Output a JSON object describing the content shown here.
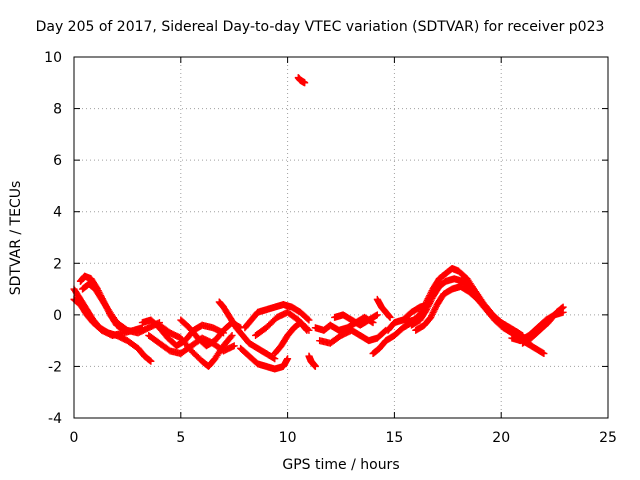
{
  "chart_data": {
    "type": "scatter",
    "title": "Day 205 of 2017, Sidereal Day-to-day VTEC variation (SDTVAR) for receiver p023",
    "xlabel": "GPS time / hours",
    "ylabel": "SDTVAR / TECUs",
    "xlim": [
      0,
      25
    ],
    "ylim": [
      -4,
      10
    ],
    "xticks": [
      0,
      5,
      10,
      15,
      20,
      25
    ],
    "yticks": [
      -4,
      -2,
      0,
      2,
      4,
      6,
      8,
      10
    ],
    "grid": true,
    "marker": "+",
    "series_color": "#ff0000",
    "traces": [
      {
        "name": "trace-1",
        "x": [
          0.0,
          0.3,
          0.6,
          0.9,
          1.2,
          1.6,
          2.0,
          2.5,
          3.0,
          3.3,
          3.6
        ],
        "y": [
          1.0,
          0.6,
          0.2,
          -0.2,
          -0.5,
          -0.7,
          -0.8,
          -1.0,
          -1.3,
          -1.6,
          -1.8
        ]
      },
      {
        "name": "trace-2",
        "x": [
          0.0,
          0.3,
          0.6,
          0.9,
          1.3,
          1.8,
          2.3,
          2.8,
          3.2
        ],
        "y": [
          0.6,
          0.4,
          0.0,
          -0.3,
          -0.6,
          -0.8,
          -0.7,
          -0.6,
          -0.5
        ]
      },
      {
        "name": "trace-3",
        "x": [
          0.3,
          0.5,
          0.8,
          1.1,
          1.4,
          1.7,
          2.0,
          2.4
        ],
        "y": [
          1.3,
          1.5,
          1.4,
          1.0,
          0.5,
          0.0,
          -0.4,
          -0.6
        ]
      },
      {
        "name": "trace-4",
        "x": [
          0.4,
          0.7,
          1.0,
          1.3,
          1.6,
          2.0,
          2.5,
          3.0,
          3.5,
          4.0
        ],
        "y": [
          1.0,
          1.2,
          1.0,
          0.6,
          0.2,
          -0.3,
          -0.6,
          -0.7,
          -0.5,
          -0.3
        ]
      },
      {
        "name": "trace-5",
        "x": [
          3.2,
          3.6,
          4.0,
          4.4,
          4.8,
          5.2,
          5.6,
          6.0,
          6.5,
          7.0
        ],
        "y": [
          -0.3,
          -0.2,
          -0.5,
          -0.9,
          -1.2,
          -1.0,
          -0.6,
          -0.4,
          -0.5,
          -0.7
        ]
      },
      {
        "name": "trace-6",
        "x": [
          3.5,
          4.0,
          4.5,
          5.0,
          5.5,
          6.0,
          6.5,
          7.0,
          7.5
        ],
        "y": [
          -0.8,
          -1.1,
          -1.4,
          -1.5,
          -1.2,
          -0.9,
          -1.1,
          -1.4,
          -1.2
        ]
      },
      {
        "name": "trace-7",
        "x": [
          4.0,
          4.5,
          5.0,
          5.5,
          6.0,
          6.3,
          6.6,
          7.0,
          7.4
        ],
        "y": [
          -0.4,
          -0.7,
          -0.9,
          -1.4,
          -1.8,
          -2.0,
          -1.7,
          -1.2,
          -0.8
        ]
      },
      {
        "name": "trace-8",
        "x": [
          5.0,
          5.4,
          5.8,
          6.2,
          6.6,
          7.0,
          7.4,
          7.8
        ],
        "y": [
          -0.2,
          -0.5,
          -0.9,
          -1.2,
          -1.0,
          -0.6,
          -0.3,
          -0.5
        ]
      },
      {
        "name": "trace-9",
        "x": [
          6.8,
          7.0,
          7.3,
          7.6,
          7.9,
          8.2,
          8.6,
          9.0,
          9.4
        ],
        "y": [
          0.5,
          0.3,
          -0.1,
          -0.5,
          -0.8,
          -1.1,
          -1.3,
          -1.5,
          -1.7
        ]
      },
      {
        "name": "trace-10",
        "x": [
          7.8,
          8.2,
          8.6,
          9.0,
          9.4,
          9.8,
          10.0
        ],
        "y": [
          -1.3,
          -1.6,
          -1.9,
          -2.0,
          -2.1,
          -2.0,
          -1.7
        ]
      },
      {
        "name": "trace-11",
        "x": [
          8.0,
          8.3,
          8.6,
          9.0,
          9.4,
          9.8,
          10.2,
          10.6,
          11.0
        ],
        "y": [
          -0.5,
          -0.2,
          0.1,
          0.2,
          0.3,
          0.4,
          0.3,
          0.1,
          -0.2
        ]
      },
      {
        "name": "trace-12",
        "x": [
          8.5,
          9.0,
          9.5,
          10.0,
          10.5,
          11.0
        ],
        "y": [
          -0.8,
          -0.5,
          -0.1,
          0.1,
          -0.2,
          -0.6
        ]
      },
      {
        "name": "trace-13",
        "x": [
          9.4,
          9.7,
          10.0,
          10.3,
          10.6,
          10.9
        ],
        "y": [
          -1.5,
          -1.2,
          -0.8,
          -0.5,
          -0.3,
          -0.6
        ]
      },
      {
        "name": "trace-14",
        "x": [
          10.5,
          10.6,
          10.7,
          10.8
        ],
        "y": [
          9.2,
          9.1,
          9.05,
          9.0
        ]
      },
      {
        "name": "trace-15",
        "x": [
          11.0,
          11.1,
          11.2,
          11.3
        ],
        "y": [
          -1.6,
          -1.8,
          -1.9,
          -2.0
        ]
      },
      {
        "name": "trace-16",
        "x": [
          11.3,
          11.7,
          12.0,
          12.4,
          12.8,
          13.2,
          13.6,
          14.0
        ],
        "y": [
          -0.5,
          -0.6,
          -0.4,
          -0.6,
          -0.5,
          -0.3,
          -0.1,
          -0.3
        ]
      },
      {
        "name": "trace-17",
        "x": [
          11.5,
          12.0,
          12.5,
          13.0,
          13.4,
          13.8,
          14.2,
          14.6
        ],
        "y": [
          -1.0,
          -1.1,
          -0.8,
          -0.6,
          -0.8,
          -1.0,
          -0.9,
          -0.6
        ]
      },
      {
        "name": "trace-18",
        "x": [
          12.2,
          12.6,
          13.0,
          13.4,
          13.8,
          14.2
        ],
        "y": [
          -0.1,
          0.0,
          -0.2,
          -0.4,
          -0.2,
          0.0
        ]
      },
      {
        "name": "trace-19",
        "x": [
          14.0,
          14.3,
          14.6,
          15.0,
          15.4,
          15.8,
          16.2
        ],
        "y": [
          -1.5,
          -1.3,
          -1.0,
          -0.8,
          -0.5,
          -0.3,
          -0.1
        ]
      },
      {
        "name": "trace-20",
        "x": [
          14.2,
          14.4,
          14.6,
          14.8
        ],
        "y": [
          0.6,
          0.3,
          0.1,
          -0.1
        ]
      },
      {
        "name": "trace-21",
        "x": [
          14.7,
          15.0,
          15.4,
          15.8,
          16.2,
          16.6
        ],
        "y": [
          -0.6,
          -0.3,
          -0.2,
          0.1,
          0.3,
          0.4
        ]
      },
      {
        "name": "trace-22",
        "x": [
          15.5,
          15.9,
          16.2,
          16.5,
          16.8,
          17.1,
          17.4,
          17.7,
          18.0,
          18.4,
          18.8,
          19.2,
          19.6,
          20.0,
          20.4,
          20.8
        ],
        "y": [
          -0.3,
          -0.2,
          0.0,
          0.5,
          1.0,
          1.4,
          1.6,
          1.8,
          1.7,
          1.4,
          0.9,
          0.4,
          0.0,
          -0.3,
          -0.5,
          -0.7
        ]
      },
      {
        "name": "trace-23",
        "x": [
          15.8,
          16.2,
          16.5,
          16.8,
          17.1,
          17.4,
          17.8,
          18.2,
          18.6,
          19.0,
          19.4,
          19.8,
          20.2,
          20.6,
          21.0
        ],
        "y": [
          -0.4,
          -0.2,
          0.2,
          0.7,
          1.1,
          1.3,
          1.4,
          1.3,
          1.1,
          0.6,
          0.2,
          -0.2,
          -0.4,
          -0.6,
          -0.8
        ]
      },
      {
        "name": "trace-24",
        "x": [
          16.0,
          16.4,
          16.7,
          17.0,
          17.3,
          17.7,
          18.1,
          18.5,
          18.9,
          19.3,
          19.7,
          20.1,
          20.5,
          20.9,
          21.3
        ],
        "y": [
          -0.6,
          -0.4,
          -0.1,
          0.4,
          0.8,
          1.0,
          1.1,
          0.9,
          0.6,
          0.2,
          -0.2,
          -0.5,
          -0.7,
          -0.9,
          -1.1
        ]
      },
      {
        "name": "trace-25",
        "x": [
          20.0,
          20.4,
          20.8,
          21.2,
          21.6,
          22.0
        ],
        "y": [
          -0.4,
          -0.6,
          -0.9,
          -1.1,
          -1.3,
          -1.5
        ]
      },
      {
        "name": "trace-26",
        "x": [
          20.5,
          20.9,
          21.3,
          21.7,
          22.1,
          22.5,
          22.9
        ],
        "y": [
          -0.9,
          -1.0,
          -0.8,
          -0.5,
          -0.2,
          0.0,
          0.1
        ]
      },
      {
        "name": "trace-27",
        "x": [
          21.0,
          21.4,
          21.8,
          22.2,
          22.6,
          22.9
        ],
        "y": [
          -1.1,
          -0.9,
          -0.6,
          -0.3,
          0.1,
          0.3
        ]
      }
    ]
  }
}
